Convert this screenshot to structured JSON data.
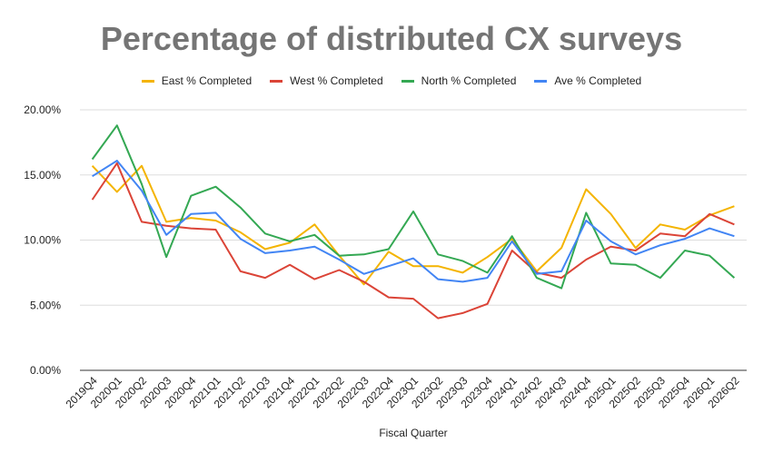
{
  "chart_data": {
    "type": "line",
    "title": "Percentage of distributed CX surveys",
    "xlabel": "Fiscal Quarter",
    "ylabel": "",
    "ylim": [
      0,
      20
    ],
    "y_ticks": [
      "0.00%",
      "5.00%",
      "10.00%",
      "15.00%",
      "20.00%"
    ],
    "grid": true,
    "legend_position": "top",
    "categories": [
      "2019Q4",
      "2020Q1",
      "2020Q2",
      "2020Q3",
      "2020Q4",
      "2021Q1",
      "2021Q2",
      "2021Q3",
      "2021Q4",
      "2022Q1",
      "2022Q2",
      "2022Q3",
      "2022Q4",
      "2023Q1",
      "2023Q2",
      "2023Q3",
      "2023Q4",
      "2024Q1",
      "2024Q2",
      "2024Q3",
      "2024Q4",
      "2025Q1",
      "2025Q2",
      "2025Q3",
      "2025Q4",
      "2026Q1",
      "2026Q2"
    ],
    "series": [
      {
        "name": "East % Completed",
        "color": "#f4b400",
        "values": [
          15.7,
          13.7,
          15.7,
          11.4,
          11.7,
          11.5,
          10.6,
          9.3,
          9.8,
          11.2,
          8.8,
          6.6,
          9.1,
          8.0,
          8.0,
          7.5,
          8.7,
          10.1,
          7.6,
          9.4,
          13.9,
          12.0,
          9.4,
          11.2,
          10.8,
          11.9,
          12.6
        ]
      },
      {
        "name": "West % Completed",
        "color": "#db4437",
        "values": [
          13.1,
          15.9,
          11.4,
          11.1,
          10.9,
          10.8,
          7.6,
          7.1,
          8.1,
          7.0,
          7.7,
          6.8,
          5.6,
          5.5,
          4.0,
          4.4,
          5.1,
          9.2,
          7.5,
          7.1,
          8.5,
          9.5,
          9.2,
          10.5,
          10.3,
          12.0,
          11.2
        ]
      },
      {
        "name": "North % Completed",
        "color": "#34a853",
        "values": [
          16.2,
          18.8,
          14.3,
          8.7,
          13.4,
          14.1,
          12.5,
          10.5,
          9.9,
          10.4,
          8.8,
          8.9,
          9.3,
          12.2,
          8.9,
          8.4,
          7.5,
          10.3,
          7.1,
          6.3,
          12.1,
          8.2,
          8.1,
          7.1,
          9.2,
          8.8,
          7.1
        ]
      },
      {
        "name": "Ave % Completed",
        "color": "#4285f4",
        "values": [
          14.9,
          16.1,
          13.8,
          10.4,
          12.0,
          12.1,
          10.1,
          9.0,
          9.2,
          9.5,
          8.5,
          7.4,
          8.0,
          8.6,
          7.0,
          6.8,
          7.1,
          9.9,
          7.4,
          7.6,
          11.5,
          9.9,
          8.9,
          9.6,
          10.1,
          10.9,
          10.3
        ]
      }
    ]
  }
}
